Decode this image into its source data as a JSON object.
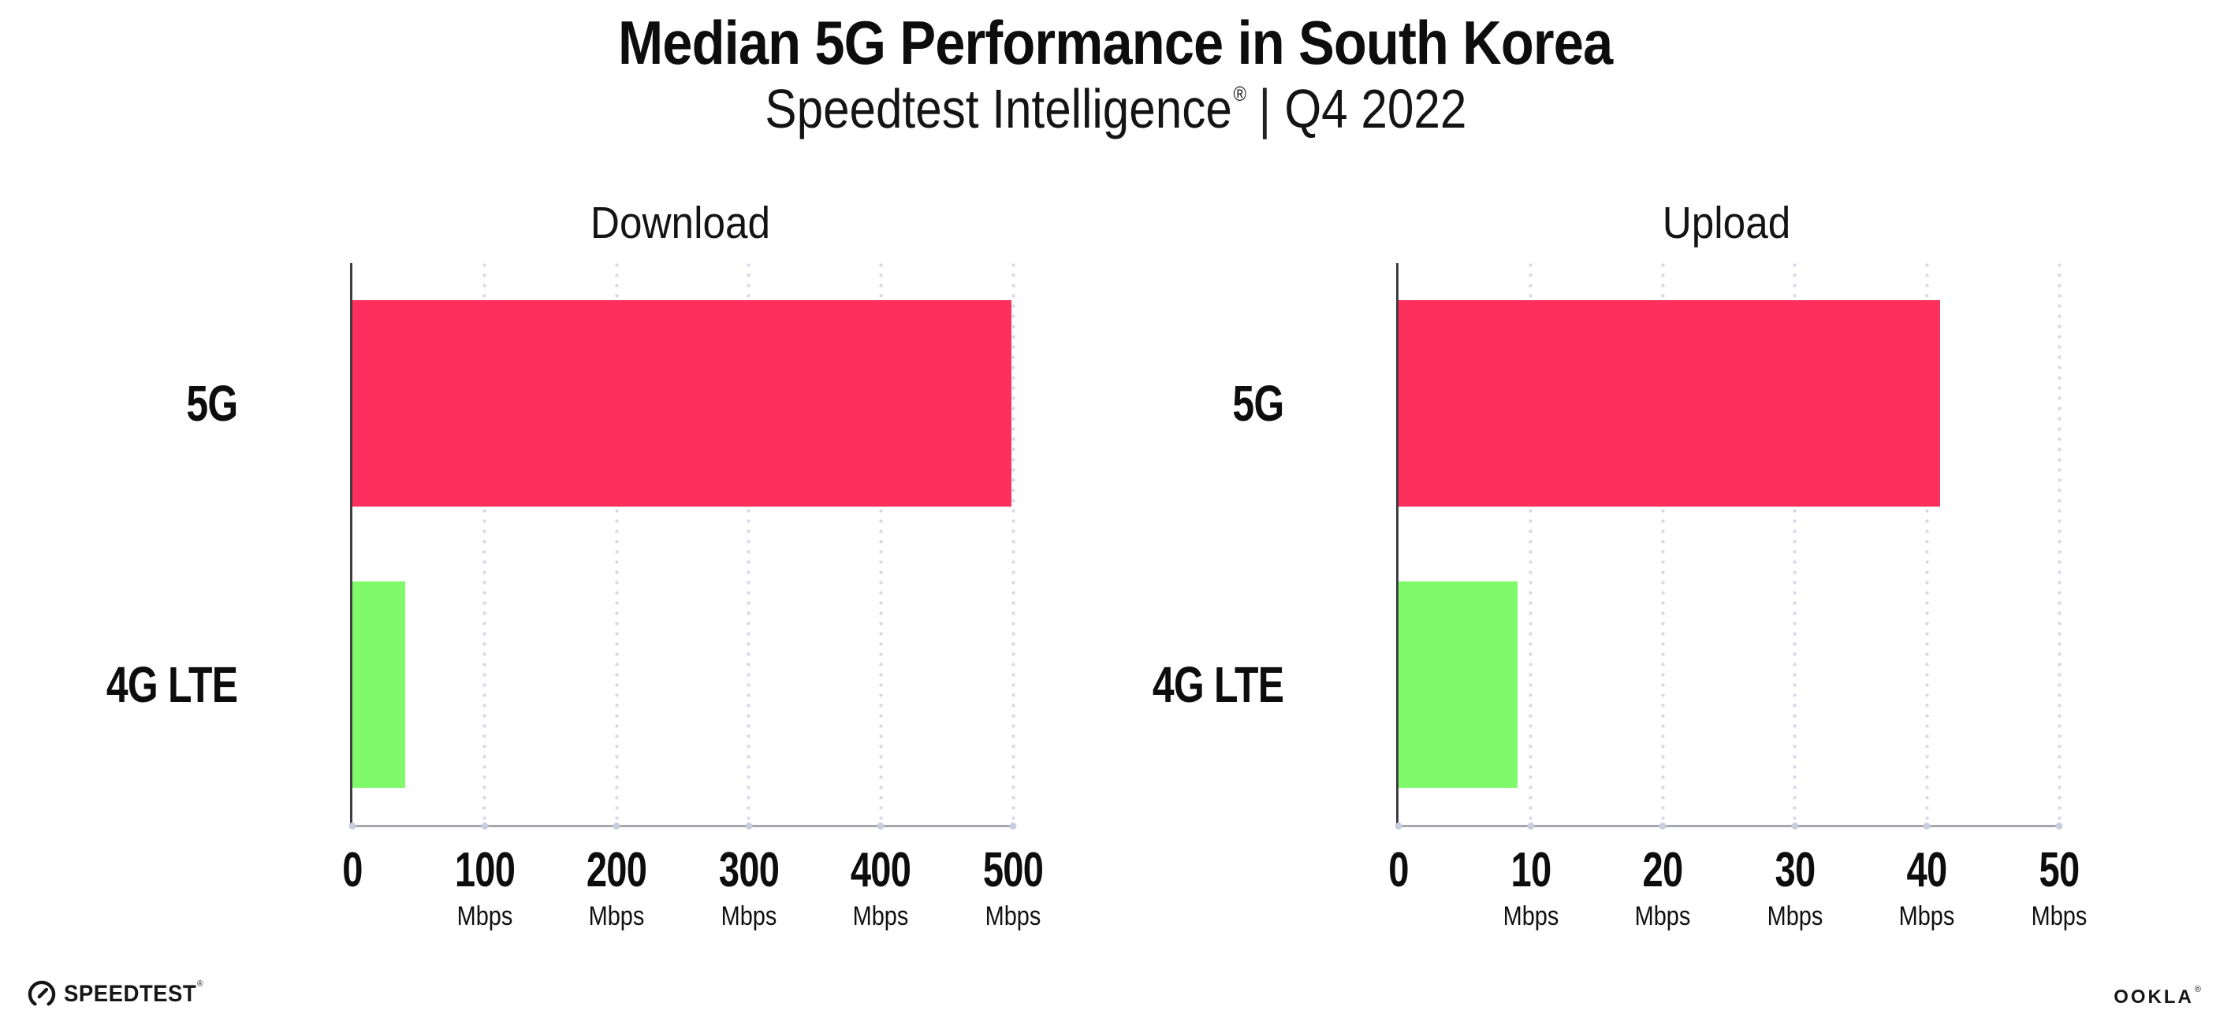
{
  "header": {
    "title": "Median 5G Performance in South Korea",
    "subtitle": {
      "brand": "Speedtest Intelligence",
      "registered_mark": "®",
      "separator": "|",
      "period": "Q4 2022"
    }
  },
  "chart_data": [
    {
      "type": "bar",
      "orientation": "horizontal",
      "title": "Download",
      "categories": [
        "5G",
        "4G LTE"
      ],
      "values": [
        499,
        40
      ],
      "unit": "Mbps",
      "xlim": [
        0,
        500
      ],
      "xticks": [
        0,
        100,
        200,
        300,
        400,
        500
      ],
      "xtick_unit": "Mbps",
      "series_colors": {
        "5G": "#fd2f5c",
        "4G LTE": "#80fa6b"
      },
      "grid": "vertical-dotted",
      "legend": "none"
    },
    {
      "type": "bar",
      "orientation": "horizontal",
      "title": "Upload",
      "categories": [
        "5G",
        "4G LTE"
      ],
      "values": [
        41,
        9
      ],
      "unit": "Mbps",
      "xlim": [
        0,
        50
      ],
      "xticks": [
        0,
        10,
        20,
        30,
        40,
        50
      ],
      "xtick_unit": "Mbps",
      "series_colors": {
        "5G": "#fd2f5c",
        "4G LTE": "#80fa6b"
      },
      "grid": "vertical-dotted",
      "legend": "none"
    }
  ],
  "footer": {
    "speedtest_wordmark": "SPEEDTEST",
    "speedtest_registered_mark": "®",
    "ookla_wordmark": "OOKLA",
    "ookla_registered_mark": "®"
  },
  "colors": {
    "bar_5g": "#fd2f5c",
    "bar_4g_lte": "#80fa6b",
    "background": "#ffffff",
    "text": "#0d0d0d",
    "y_axis": "#3d3d44",
    "x_axis": "#a6a6af",
    "gridline": "#d7dae6"
  }
}
